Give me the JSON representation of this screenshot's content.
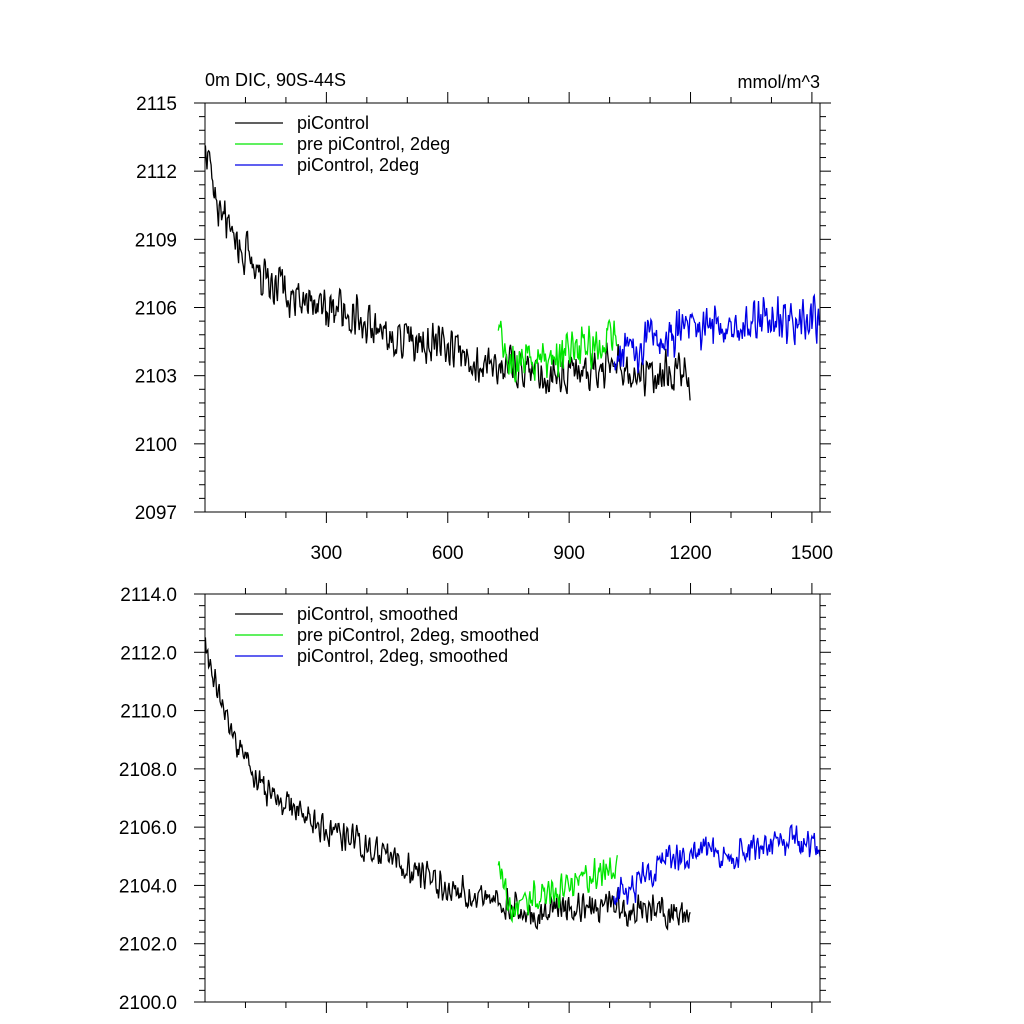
{
  "figure": {
    "left_title": "0m DIC, 90S-44S",
    "right_title": "mmol/m^3"
  },
  "colors": {
    "piControl": "#000000",
    "pre_piControl_2deg": "#00e600",
    "piControl_2deg": "#0000e6"
  },
  "chart_data": [
    {
      "type": "line",
      "title": "0m DIC, 90S-44S",
      "units": "mmol/m^3",
      "xlim": [
        0,
        1520
      ],
      "ylim": [
        2097,
        2115
      ],
      "xticks": [
        300,
        600,
        900,
        1200,
        1500
      ],
      "yticks": [
        2097,
        2100,
        2103,
        2106,
        2109,
        2112,
        2115
      ],
      "ytick_labels": [
        "2097",
        "2100",
        "2103",
        "2106",
        "2109",
        "2112",
        "2115"
      ],
      "xtick_labels": [
        "300",
        "600",
        "900",
        "1200",
        "1500"
      ],
      "legend": [
        "piControl",
        "pre piControl, 2deg",
        "piControl, 2deg"
      ],
      "legend_position": "top-left",
      "series": [
        {
          "name": "piControl",
          "color": "#000000",
          "x_range": [
            1,
            1200
          ],
          "anchors": [
            [
              1,
              2113.5
            ],
            [
              20,
              2111.2
            ],
            [
              60,
              2109.6
            ],
            [
              100,
              2108.3
            ],
            [
              150,
              2107.3
            ],
            [
              200,
              2106.8
            ],
            [
              300,
              2106.1
            ],
            [
              400,
              2105.4
            ],
            [
              500,
              2104.7
            ],
            [
              600,
              2104.0
            ],
            [
              700,
              2103.6
            ],
            [
              800,
              2103.1
            ],
            [
              900,
              2103.1
            ],
            [
              1000,
              2103.3
            ],
            [
              1100,
              2103.1
            ],
            [
              1200,
              2102.9
            ]
          ],
          "noise": 1.2
        },
        {
          "name": "pre piControl, 2deg",
          "color": "#00e600",
          "x_range": [
            725,
            1020
          ],
          "anchors": [
            [
              725,
              2104.6
            ],
            [
              760,
              2103.2
            ],
            [
              800,
              2103.6
            ],
            [
              850,
              2103.7
            ],
            [
              900,
              2104.0
            ],
            [
              950,
              2104.2
            ],
            [
              1000,
              2104.6
            ],
            [
              1020,
              2104.7
            ]
          ],
          "noise": 1.3
        },
        {
          "name": "piControl, 2deg",
          "color": "#0000e6",
          "x_range": [
            1010,
            1520
          ],
          "anchors": [
            [
              1010,
              2103.8
            ],
            [
              1060,
              2104.0
            ],
            [
              1120,
              2104.6
            ],
            [
              1200,
              2105.1
            ],
            [
              1300,
              2105.0
            ],
            [
              1400,
              2105.6
            ],
            [
              1500,
              2105.3
            ],
            [
              1520,
              2105.3
            ]
          ],
          "noise": 1.25
        }
      ]
    },
    {
      "type": "line",
      "title": "",
      "xlim": [
        0,
        1520
      ],
      "ylim": [
        2100.0,
        2114.0
      ],
      "xticks": [
        300,
        600,
        900,
        1200,
        1500
      ],
      "yticks": [
        2100.0,
        2102.0,
        2104.0,
        2106.0,
        2108.0,
        2110.0,
        2112.0,
        2114.0
      ],
      "ytick_labels": [
        "2100.0",
        "2102.0",
        "2104.0",
        "2106.0",
        "2108.0",
        "2110.0",
        "2112.0",
        "2114.0"
      ],
      "legend": [
        "piControl, smoothed",
        "pre piControl, 2deg, smoothed",
        "piControl, 2deg, smoothed"
      ],
      "legend_position": "top-left",
      "series": [
        {
          "name": "piControl, smoothed",
          "color": "#000000",
          "x_range": [
            1,
            1200
          ],
          "anchors": [
            [
              1,
              2112.3
            ],
            [
              20,
              2111.0
            ],
            [
              60,
              2109.6
            ],
            [
              100,
              2108.2
            ],
            [
              150,
              2107.3
            ],
            [
              200,
              2106.7
            ],
            [
              300,
              2106.0
            ],
            [
              400,
              2105.4
            ],
            [
              500,
              2104.6
            ],
            [
              600,
              2103.9
            ],
            [
              700,
              2103.6
            ],
            [
              800,
              2103.1
            ],
            [
              900,
              2103.1
            ],
            [
              1000,
              2103.3
            ],
            [
              1100,
              2103.1
            ],
            [
              1200,
              2102.9
            ]
          ],
          "noise": 0.7
        },
        {
          "name": "pre piControl, 2deg, smoothed",
          "color": "#00e600",
          "x_range": [
            725,
            1020
          ],
          "anchors": [
            [
              725,
              2104.6
            ],
            [
              760,
              2103.0
            ],
            [
              800,
              2103.5
            ],
            [
              850,
              2103.7
            ],
            [
              900,
              2104.0
            ],
            [
              950,
              2104.2
            ],
            [
              1000,
              2104.7
            ],
            [
              1020,
              2104.8
            ]
          ],
          "noise": 0.7
        },
        {
          "name": "piControl, 2deg, smoothed",
          "color": "#0000e6",
          "x_range": [
            1010,
            1520
          ],
          "anchors": [
            [
              1010,
              2103.8
            ],
            [
              1060,
              2104.0
            ],
            [
              1120,
              2104.7
            ],
            [
              1200,
              2105.1
            ],
            [
              1300,
              2105.0
            ],
            [
              1400,
              2105.6
            ],
            [
              1500,
              2105.3
            ],
            [
              1520,
              2105.3
            ]
          ],
          "noise": 0.7
        }
      ]
    }
  ]
}
